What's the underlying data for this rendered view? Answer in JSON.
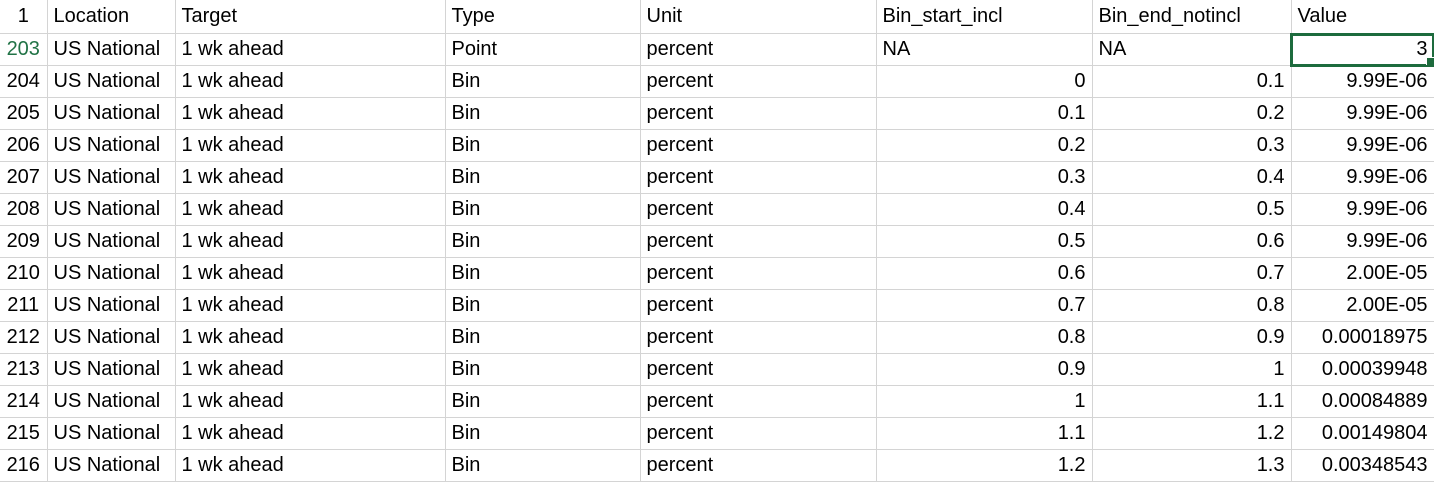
{
  "colors": {
    "gridline": "#d4d4d4",
    "selection": "#1d6b3d",
    "active_row_number": "#217346"
  },
  "header": {
    "row_number": "1",
    "columns": [
      "Location",
      "Target",
      "Type",
      "Unit",
      "Bin_start_incl",
      "Bin_end_notincl",
      "Value"
    ]
  },
  "rows": [
    {
      "row_number": "203",
      "location": "US National",
      "target": "1 wk ahead",
      "type": "Point",
      "unit": "percent",
      "bin_start": "NA",
      "bin_end": "NA",
      "value": "3"
    },
    {
      "row_number": "204",
      "location": "US National",
      "target": "1 wk ahead",
      "type": "Bin",
      "unit": "percent",
      "bin_start": "0",
      "bin_end": "0.1",
      "value": "9.99E-06"
    },
    {
      "row_number": "205",
      "location": "US National",
      "target": "1 wk ahead",
      "type": "Bin",
      "unit": "percent",
      "bin_start": "0.1",
      "bin_end": "0.2",
      "value": "9.99E-06"
    },
    {
      "row_number": "206",
      "location": "US National",
      "target": "1 wk ahead",
      "type": "Bin",
      "unit": "percent",
      "bin_start": "0.2",
      "bin_end": "0.3",
      "value": "9.99E-06"
    },
    {
      "row_number": "207",
      "location": "US National",
      "target": "1 wk ahead",
      "type": "Bin",
      "unit": "percent",
      "bin_start": "0.3",
      "bin_end": "0.4",
      "value": "9.99E-06"
    },
    {
      "row_number": "208",
      "location": "US National",
      "target": "1 wk ahead",
      "type": "Bin",
      "unit": "percent",
      "bin_start": "0.4",
      "bin_end": "0.5",
      "value": "9.99E-06"
    },
    {
      "row_number": "209",
      "location": "US National",
      "target": "1 wk ahead",
      "type": "Bin",
      "unit": "percent",
      "bin_start": "0.5",
      "bin_end": "0.6",
      "value": "9.99E-06"
    },
    {
      "row_number": "210",
      "location": "US National",
      "target": "1 wk ahead",
      "type": "Bin",
      "unit": "percent",
      "bin_start": "0.6",
      "bin_end": "0.7",
      "value": "2.00E-05"
    },
    {
      "row_number": "211",
      "location": "US National",
      "target": "1 wk ahead",
      "type": "Bin",
      "unit": "percent",
      "bin_start": "0.7",
      "bin_end": "0.8",
      "value": "2.00E-05"
    },
    {
      "row_number": "212",
      "location": "US National",
      "target": "1 wk ahead",
      "type": "Bin",
      "unit": "percent",
      "bin_start": "0.8",
      "bin_end": "0.9",
      "value": "0.00018975"
    },
    {
      "row_number": "213",
      "location": "US National",
      "target": "1 wk ahead",
      "type": "Bin",
      "unit": "percent",
      "bin_start": "0.9",
      "bin_end": "1",
      "value": "0.00039948"
    },
    {
      "row_number": "214",
      "location": "US National",
      "target": "1 wk ahead",
      "type": "Bin",
      "unit": "percent",
      "bin_start": "1",
      "bin_end": "1.1",
      "value": "0.00084889"
    },
    {
      "row_number": "215",
      "location": "US National",
      "target": "1 wk ahead",
      "type": "Bin",
      "unit": "percent",
      "bin_start": "1.1",
      "bin_end": "1.2",
      "value": "0.00149804"
    },
    {
      "row_number": "216",
      "location": "US National",
      "target": "1 wk ahead",
      "type": "Bin",
      "unit": "percent",
      "bin_start": "1.2",
      "bin_end": "1.3",
      "value": "0.00348543"
    }
  ]
}
